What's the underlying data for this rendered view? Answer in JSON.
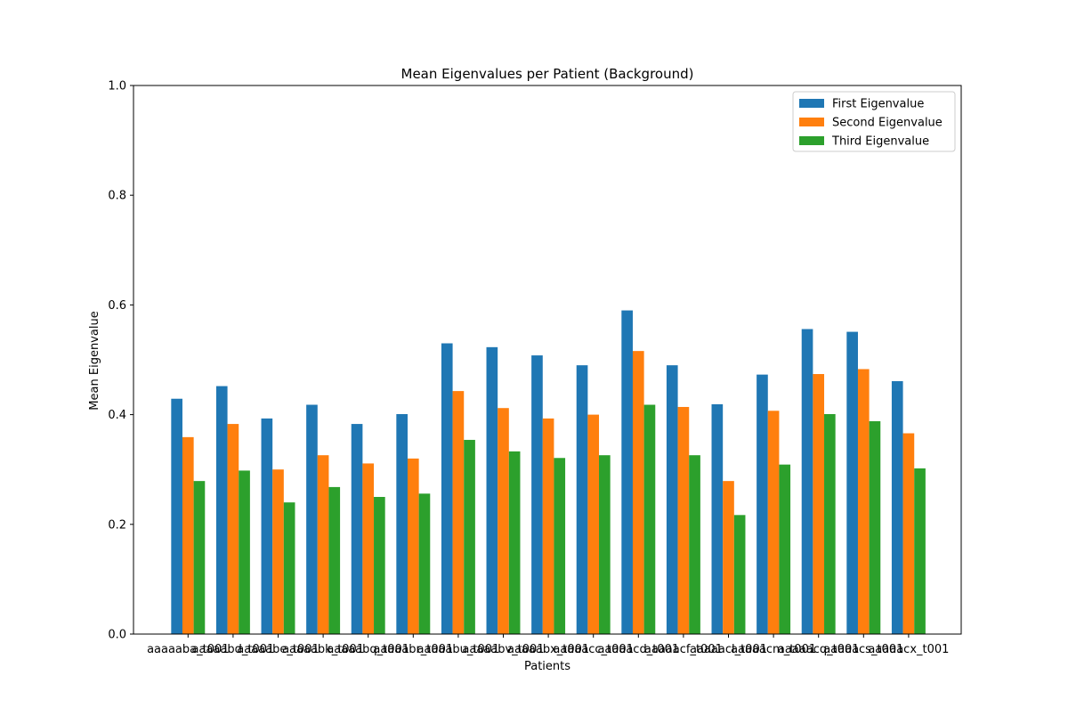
{
  "chart_data": {
    "type": "bar",
    "title": "Mean Eigenvalues per Patient (Background)",
    "xlabel": "Patients",
    "ylabel": "Mean Eigenvalue",
    "ylim": [
      0,
      1.0
    ],
    "yticks": [
      "0.0",
      "0.2",
      "0.4",
      "0.6",
      "0.8",
      "1.0"
    ],
    "grid": false,
    "legend_position": "upper-right",
    "categories": [
      "aaaaaba_t001",
      "aaaaabd_t001",
      "aaaaabe_t001",
      "aaaaabk_t001",
      "aaaaabq_t001",
      "aaaaabr_t001",
      "aaaaabu_t001",
      "aaaaabv_t001",
      "aaaaabx_t001",
      "aaaaacc_t001",
      "aaaaacd_t001",
      "aaaaacf_t001",
      "aaaaacl_t001",
      "aaaaacm_t001",
      "aaaaacq_t001",
      "aaaaacs_t001",
      "aaaaacx_t001"
    ],
    "series": [
      {
        "name": "First Eigenvalue",
        "color": "#1f77b4",
        "values": [
          0.429,
          0.452,
          0.393,
          0.418,
          0.383,
          0.401,
          0.53,
          0.523,
          0.508,
          0.49,
          0.59,
          0.49,
          0.419,
          0.473,
          0.556,
          0.551,
          0.461
        ]
      },
      {
        "name": "Second Eigenvalue",
        "color": "#ff7f0e",
        "values": [
          0.359,
          0.383,
          0.3,
          0.326,
          0.311,
          0.32,
          0.443,
          0.412,
          0.393,
          0.4,
          0.516,
          0.414,
          0.279,
          0.407,
          0.474,
          0.483,
          0.366
        ]
      },
      {
        "name": "Third Eigenvalue",
        "color": "#2ca02c",
        "values": [
          0.279,
          0.298,
          0.24,
          0.268,
          0.25,
          0.256,
          0.354,
          0.333,
          0.321,
          0.326,
          0.418,
          0.326,
          0.217,
          0.309,
          0.401,
          0.388,
          0.302
        ]
      }
    ]
  }
}
